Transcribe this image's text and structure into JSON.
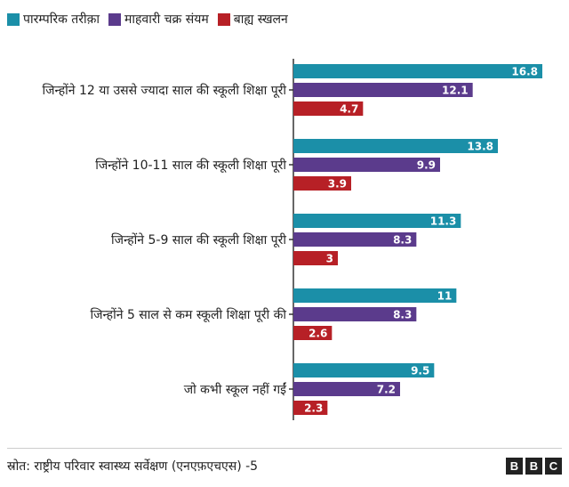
{
  "colors": {
    "traditional": "#1b8fa8",
    "calendar": "#5b3b8c",
    "withdrawal": "#b72026",
    "axis": "#333333",
    "text": "#222222"
  },
  "chart_data": {
    "type": "bar",
    "orientation": "horizontal",
    "title": "",
    "xlabel": "",
    "ylabel": "",
    "xlim": [
      0,
      16.8
    ],
    "grid": false,
    "legend_position": "top-left",
    "categories": [
      "जिन्होंने 12 या उससे ज्यादा साल की स्कूली शिक्षा पूरी",
      "जिन्होंने 10-11 साल की स्कूली शिक्षा पूरी",
      "जिन्होंने 5-9 साल की स्कूली शिक्षा पूरी",
      "जिन्होंने 5 साल से कम स्कूली शिक्षा  पूरी की",
      "जो कभी स्कूल नहीं गईं"
    ],
    "series": [
      {
        "name": "पारम्परिक तरीक़ा",
        "color_key": "traditional",
        "values": [
          16.8,
          13.8,
          11.3,
          11,
          9.5
        ],
        "labels": [
          "16.8",
          "13.8",
          "11.3",
          "11",
          "9.5"
        ]
      },
      {
        "name": "माहवारी चक्र संयम",
        "color_key": "calendar",
        "values": [
          12.1,
          9.9,
          8.3,
          8.3,
          7.2
        ],
        "labels": [
          "12.1",
          "9.9",
          "8.3",
          "8.3",
          "7.2"
        ]
      },
      {
        "name": "बाह्य स्खलन",
        "color_key": "withdrawal",
        "values": [
          4.7,
          3.9,
          3,
          2.6,
          2.3
        ],
        "labels": [
          "4.7",
          "3.9",
          "3",
          "2.6",
          "2.3"
        ]
      }
    ]
  },
  "footer": {
    "source": "स्रोत: राष्ट्रीय परिवार स्वास्थ्य सर्वेक्षण (एनएफ़एचएस) -5",
    "logo_letters": [
      "B",
      "B",
      "C"
    ]
  }
}
